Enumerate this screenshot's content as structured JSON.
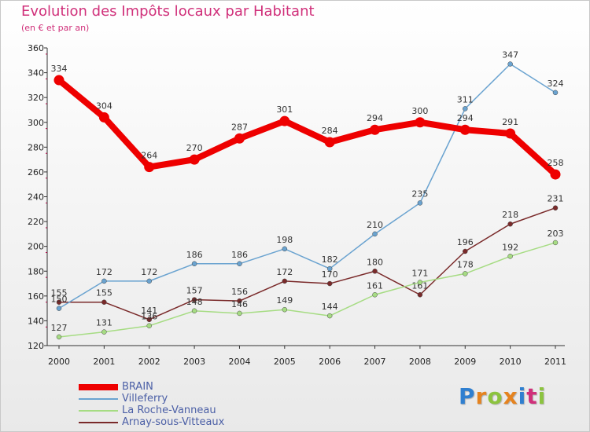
{
  "chart_data": {
    "type": "line",
    "title": "Evolution des Impôts locaux par Habitant",
    "subtitle": "(en € et par an)",
    "xlabel": "",
    "ylabel": "",
    "categories": [
      "2000",
      "2001",
      "2002",
      "2003",
      "2004",
      "2005",
      "2006",
      "2007",
      "2008",
      "2009",
      "2010",
      "2011"
    ],
    "ylim": [
      120,
      360
    ],
    "yticks": [
      120,
      140,
      160,
      180,
      200,
      220,
      240,
      260,
      280,
      300,
      320,
      340,
      360
    ],
    "grid": false,
    "legend": "bottom-left",
    "series": [
      {
        "name": "BRAIN",
        "color": "#ee0000",
        "values": [
          334,
          304,
          264,
          270,
          287,
          301,
          284,
          294,
          300,
          294,
          291,
          258
        ]
      },
      {
        "name": "Villeferry",
        "color": "#6aa3d0",
        "values": [
          150,
          172,
          172,
          186,
          186,
          198,
          182,
          210,
          235,
          311,
          347,
          324
        ]
      },
      {
        "name": "La Roche-Vanneau",
        "color": "#a6dc83",
        "values": [
          127,
          131,
          136,
          148,
          146,
          149,
          144,
          161,
          171,
          178,
          192,
          203
        ]
      },
      {
        "name": "Arnay-sous-Vitteaux",
        "color": "#7a2a2a",
        "values": [
          155,
          155,
          141,
          157,
          156,
          172,
          170,
          180,
          161,
          196,
          218,
          231
        ]
      }
    ]
  }
}
